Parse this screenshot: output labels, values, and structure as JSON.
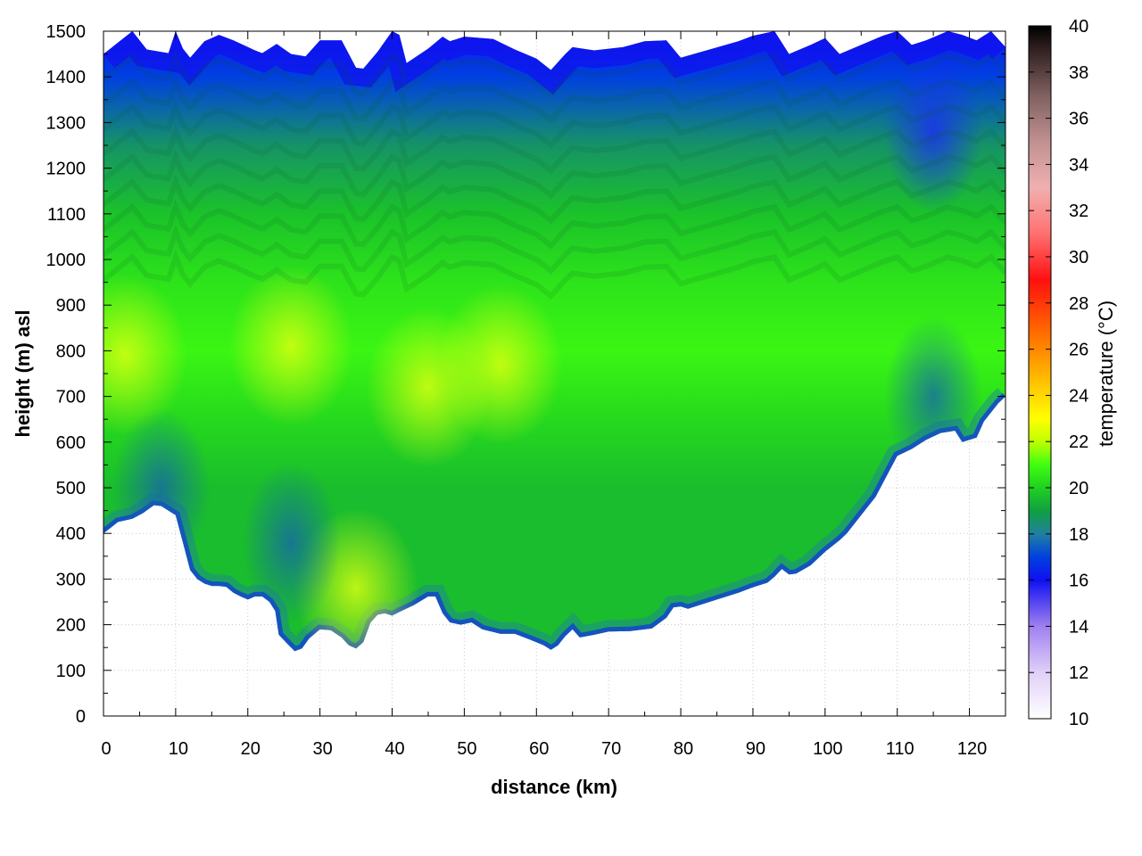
{
  "chart_data": {
    "type": "heatmap",
    "xlabel": "distance (km)",
    "ylabel": "height (m) asl",
    "colorbar_label": "temperature (°C)",
    "xlim": [
      0,
      125
    ],
    "ylim": [
      0,
      1500
    ],
    "clim": [
      10,
      40
    ],
    "x_ticks": [
      "0",
      "10",
      "20",
      "30",
      "40",
      "50",
      "60",
      "70",
      "80",
      "90",
      "100",
      "110",
      "120"
    ],
    "y_ticks": [
      "0",
      "100",
      "200",
      "300",
      "400",
      "500",
      "600",
      "700",
      "800",
      "900",
      "1000",
      "1100",
      "1200",
      "1300",
      "1400",
      "1500"
    ],
    "colorbar_ticks": [
      "10",
      "12",
      "14",
      "16",
      "18",
      "20",
      "22",
      "24",
      "26",
      "28",
      "30",
      "32",
      "34",
      "36",
      "38",
      "40"
    ],
    "colormap": [
      {
        "value": 10,
        "color": "#ffffff"
      },
      {
        "value": 12,
        "color": "#e0d0f8"
      },
      {
        "value": 14,
        "color": "#a080f0"
      },
      {
        "value": 16,
        "color": "#1010f0"
      },
      {
        "value": 17,
        "color": "#0040e0"
      },
      {
        "value": 18,
        "color": "#2080a0"
      },
      {
        "value": 19,
        "color": "#10a040"
      },
      {
        "value": 20,
        "color": "#20d020"
      },
      {
        "value": 21,
        "color": "#40ff10"
      },
      {
        "value": 22,
        "color": "#c0ff00"
      },
      {
        "value": 23,
        "color": "#ffff00"
      },
      {
        "value": 25,
        "color": "#ffb000"
      },
      {
        "value": 27,
        "color": "#ff6000"
      },
      {
        "value": 29,
        "color": "#ff1010"
      },
      {
        "value": 31,
        "color": "#ff7070"
      },
      {
        "value": 33,
        "color": "#f0b0b0"
      },
      {
        "value": 35,
        "color": "#c09090"
      },
      {
        "value": 37,
        "color": "#806060"
      },
      {
        "value": 39,
        "color": "#302020"
      },
      {
        "value": 40,
        "color": "#000000"
      }
    ],
    "ground_profile": [
      [
        0,
        400
      ],
      [
        2,
        425
      ],
      [
        4,
        432
      ],
      [
        5.5,
        445
      ],
      [
        7,
        462
      ],
      [
        8,
        460
      ],
      [
        9,
        450
      ],
      [
        10,
        440
      ],
      [
        11,
        380
      ],
      [
        12,
        320
      ],
      [
        13,
        300
      ],
      [
        14,
        290
      ],
      [
        15,
        285
      ],
      [
        16,
        285
      ],
      [
        17,
        283
      ],
      [
        18,
        270
      ],
      [
        19,
        262
      ],
      [
        20,
        255
      ],
      [
        21,
        262
      ],
      [
        22,
        262
      ],
      [
        23,
        250
      ],
      [
        23.8,
        230
      ],
      [
        24.3,
        178
      ],
      [
        25.5,
        158
      ],
      [
        26.5,
        142
      ],
      [
        27.5,
        148
      ],
      [
        28.5,
        170
      ],
      [
        30,
        190
      ],
      [
        31.5,
        188
      ],
      [
        33,
        172
      ],
      [
        34,
        155
      ],
      [
        35,
        148
      ],
      [
        36,
        162
      ],
      [
        37,
        205
      ],
      [
        38,
        222
      ],
      [
        39,
        225
      ],
      [
        40,
        220
      ],
      [
        41,
        228
      ],
      [
        43,
        243
      ],
      [
        45,
        262
      ],
      [
        46,
        262
      ],
      [
        47,
        225
      ],
      [
        48,
        205
      ],
      [
        49.5,
        200
      ],
      [
        51,
        205
      ],
      [
        52.5,
        190
      ],
      [
        55,
        180
      ],
      [
        57,
        180
      ],
      [
        59,
        168
      ],
      [
        61,
        155
      ],
      [
        62,
        145
      ],
      [
        63,
        155
      ],
      [
        64,
        175
      ],
      [
        65,
        190
      ],
      [
        66,
        172
      ],
      [
        68,
        178
      ],
      [
        70,
        185
      ],
      [
        73,
        186
      ],
      [
        76,
        192
      ],
      [
        78,
        215
      ],
      [
        79,
        238
      ],
      [
        80,
        240
      ],
      [
        81,
        235
      ],
      [
        82,
        240
      ],
      [
        85,
        255
      ],
      [
        88,
        270
      ],
      [
        90,
        282
      ],
      [
        92,
        292
      ],
      [
        93,
        305
      ],
      [
        94,
        322
      ],
      [
        95,
        310
      ],
      [
        96,
        312
      ],
      [
        98,
        330
      ],
      [
        100,
        360
      ],
      [
        102,
        385
      ],
      [
        103,
        400
      ],
      [
        105,
        440
      ],
      [
        107,
        480
      ],
      [
        109,
        540
      ],
      [
        110,
        570
      ],
      [
        112,
        585
      ],
      [
        114,
        605
      ],
      [
        116,
        620
      ],
      [
        118,
        625
      ],
      [
        119,
        600
      ],
      [
        120,
        605
      ],
      [
        121,
        610
      ],
      [
        122,
        645
      ],
      [
        124,
        685
      ],
      [
        125,
        700
      ]
    ],
    "top_profile": [
      [
        0,
        1450
      ],
      [
        2,
        1475
      ],
      [
        4,
        1500
      ],
      [
        6,
        1460
      ],
      [
        9,
        1452
      ],
      [
        10,
        1500
      ],
      [
        11,
        1462
      ],
      [
        12,
        1442
      ],
      [
        14,
        1478
      ],
      [
        16,
        1492
      ],
      [
        18,
        1480
      ],
      [
        21,
        1458
      ],
      [
        22,
        1452
      ],
      [
        24,
        1472
      ],
      [
        26,
        1450
      ],
      [
        28,
        1445
      ],
      [
        30,
        1480
      ],
      [
        33,
        1480
      ],
      [
        35,
        1420
      ],
      [
        36,
        1418
      ],
      [
        38,
        1455
      ],
      [
        40,
        1500
      ],
      [
        41,
        1492
      ],
      [
        42,
        1430
      ],
      [
        45,
        1462
      ],
      [
        47,
        1488
      ],
      [
        48,
        1478
      ],
      [
        50,
        1488
      ],
      [
        54,
        1483
      ],
      [
        57,
        1460
      ],
      [
        60,
        1440
      ],
      [
        62,
        1415
      ],
      [
        64,
        1450
      ],
      [
        65,
        1465
      ],
      [
        68,
        1458
      ],
      [
        72,
        1465
      ],
      [
        75,
        1478
      ],
      [
        78,
        1480
      ],
      [
        80,
        1442
      ],
      [
        84,
        1460
      ],
      [
        88,
        1478
      ],
      [
        90,
        1490
      ],
      [
        93,
        1500
      ],
      [
        95,
        1450
      ],
      [
        98,
        1470
      ],
      [
        100,
        1485
      ],
      [
        102,
        1450
      ],
      [
        105,
        1470
      ],
      [
        108,
        1490
      ],
      [
        110,
        1500
      ],
      [
        112,
        1470
      ],
      [
        114,
        1480
      ],
      [
        117,
        1500
      ],
      [
        119,
        1492
      ],
      [
        121,
        1480
      ],
      [
        123,
        1500
      ],
      [
        125,
        1465
      ]
    ],
    "temperature_profile": [
      {
        "height": 0,
        "temperature": 19.6
      },
      {
        "height": 500,
        "temperature": 19.6
      },
      {
        "height": 650,
        "temperature": 20.2
      },
      {
        "height": 800,
        "temperature": 20.8
      },
      {
        "height": 950,
        "temperature": 20.4
      },
      {
        "height": 1100,
        "temperature": 19.7
      },
      {
        "height": 1250,
        "temperature": 18.6
      },
      {
        "height": 1400,
        "temperature": 17.0
      },
      {
        "height": 1500,
        "temperature": 16.2
      }
    ],
    "warm_spots": [
      {
        "x": 26,
        "y": 810,
        "temperature": 22.0
      },
      {
        "x": 3,
        "y": 790,
        "temperature": 21.4
      },
      {
        "x": 55,
        "y": 770,
        "temperature": 21.1
      },
      {
        "x": 45,
        "y": 720,
        "temperature": 21.1
      },
      {
        "x": 35,
        "y": 280,
        "temperature": 21.0
      }
    ],
    "cool_spots": [
      {
        "x": 8,
        "y": 500,
        "temperature": 17.4
      },
      {
        "x": 26,
        "y": 380,
        "temperature": 18.0
      },
      {
        "x": 115,
        "y": 1280,
        "temperature": 16.3
      },
      {
        "x": 115,
        "y": 700,
        "temperature": 18.2
      }
    ]
  }
}
